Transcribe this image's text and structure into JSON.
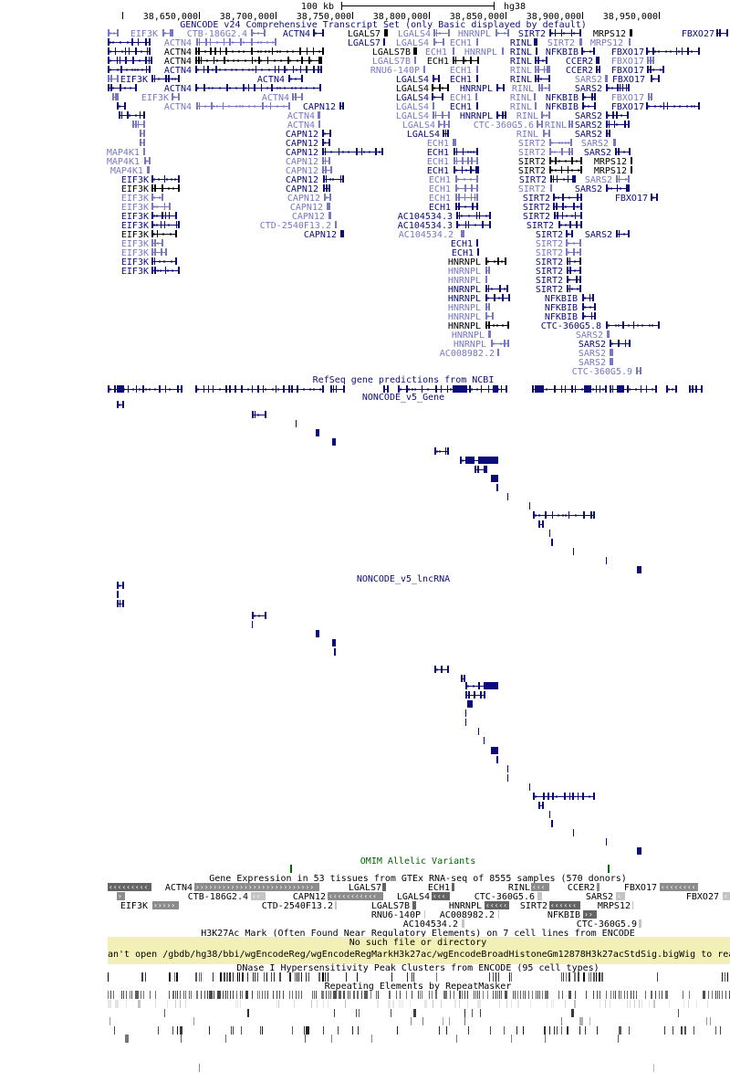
{
  "ruler": {
    "scale_label": "100 kb",
    "assembly": "hg38",
    "positions": [
      "38,650,000",
      "38,700,000",
      "38,750,000",
      "38,800,000",
      "38,850,000",
      "38,900,000",
      "38,950,000"
    ]
  },
  "colors": {
    "dark": "#0c0c78",
    "black": "#000000",
    "light": "#7878c0",
    "omim": "#006400",
    "gtex_dark": "#646464",
    "gtex_mid": "#8c8c8c",
    "gtex_light": "#c4c4c4",
    "warning_bg": "#f2f0b6",
    "repeat": "#000000"
  },
  "gencode": {
    "title": "GENCODE v24 Comprehensive Transcript Set (only Basic displayed by default)",
    "rows": [
      [
        [
          "EIF3K",
          "light"
        ],
        [
          "CTB-186G2.4",
          "light"
        ],
        [
          "ACTN4",
          "dark"
        ],
        [
          "LGALS7",
          "black"
        ],
        [
          "LGALS4",
          "light"
        ],
        [
          "HNRNPL",
          "light"
        ],
        [
          "SIRT2",
          "dark"
        ],
        [
          "MRPS12",
          "black"
        ],
        [
          "FBXO27",
          "dark"
        ]
      ],
      [
        [
          "ACTN4",
          "light"
        ],
        [
          "LGALS7",
          "dark"
        ],
        [
          "LGALS4",
          "light"
        ],
        [
          "ECH1",
          "light"
        ],
        [
          "RINL",
          "dark"
        ],
        [
          "SIRT2",
          "light"
        ],
        [
          "MRPS12",
          "light"
        ]
      ],
      [
        [
          "ACTN4",
          "black"
        ],
        [
          "LGALS7B",
          "black"
        ],
        [
          "ECH1",
          "light"
        ],
        [
          "HNRNPL",
          "light"
        ],
        [
          "RINL",
          "dark"
        ],
        [
          "NFKBIB",
          "dark"
        ],
        [
          "FBXO17",
          "dark"
        ]
      ],
      [
        [
          "ACTN4",
          "black"
        ],
        [
          "LGALS7B",
          "light"
        ],
        [
          "ECH1",
          "black"
        ],
        [
          "RINL",
          "dark"
        ],
        [
          "CCER2",
          "dark"
        ],
        [
          "FBXO17",
          "light"
        ]
      ],
      [
        [
          "ACTN4",
          "dark"
        ],
        [
          "RNU6-140P",
          "light"
        ],
        [
          "ECH1",
          "light"
        ],
        [
          "RINL",
          "light"
        ],
        [
          "CCER2",
          "dark"
        ],
        [
          "FBXO17",
          "dark"
        ]
      ],
      [
        [
          "EIF3K",
          "dark"
        ],
        [
          "ACTN4",
          "dark"
        ],
        [
          "LGALS4",
          "dark"
        ],
        [
          "ECH1",
          "dark"
        ],
        [
          "RINL",
          "dark"
        ],
        [
          "SARS2",
          "light"
        ],
        [
          "FBXO17",
          "dark"
        ]
      ],
      [
        [
          "ACTN4",
          "dark"
        ],
        [
          "LGALS4",
          "black"
        ],
        [
          "HNRNPL",
          "dark"
        ],
        [
          "RINL",
          "light"
        ],
        [
          "SARS2",
          "dark"
        ]
      ],
      [
        [
          "EIF3K",
          "light"
        ],
        [
          "ACTN4",
          "light"
        ],
        [
          "LGALS4",
          "dark"
        ],
        [
          "ECH1",
          "light"
        ],
        [
          "RINL",
          "light"
        ],
        [
          "NFKBIB",
          "dark"
        ],
        [
          "FBXO17",
          "light"
        ]
      ],
      [
        [
          "ACTN4",
          "light"
        ],
        [
          "CAPN12",
          "dark"
        ],
        [
          "LGALS4",
          "light"
        ],
        [
          "ECH1",
          "dark"
        ],
        [
          "RINL",
          "light"
        ],
        [
          "NFKBIB",
          "dark"
        ],
        [
          "FBXO17",
          "dark"
        ]
      ],
      [
        [
          "ACTN4",
          "light"
        ],
        [
          "LGALS4",
          "light"
        ],
        [
          "HNRNPL",
          "dark"
        ],
        [
          "RINL",
          "light"
        ],
        [
          "SARS2",
          "dark"
        ]
      ],
      [
        [
          "ACTN4",
          "light"
        ],
        [
          "LGALS4",
          "light"
        ],
        [
          "CTC-360G5.6",
          "light"
        ],
        [
          "RINL",
          "light"
        ],
        [
          "SARS2",
          "dark"
        ]
      ],
      [
        [
          "CAPN12",
          "dark"
        ],
        [
          "LGALS4",
          "dark"
        ],
        [
          "RINL",
          "light"
        ],
        [
          "SARS2",
          "dark"
        ]
      ],
      [
        [
          "CAPN12",
          "dark"
        ],
        [
          "ECH1",
          "light"
        ],
        [
          "SIRT2",
          "light"
        ],
        [
          "SARS2",
          "light"
        ]
      ],
      [
        [
          "MAP4K1",
          "light"
        ],
        [
          "CAPN12",
          "dark"
        ],
        [
          "ECH1",
          "dark"
        ],
        [
          "SIRT2",
          "light"
        ],
        [
          "SARS2",
          "dark"
        ]
      ],
      [
        [
          "MAP4K1",
          "light"
        ],
        [
          "CAPN12",
          "light"
        ],
        [
          "ECH1",
          "light"
        ],
        [
          "SIRT2",
          "black"
        ],
        [
          "MRPS12",
          "black"
        ]
      ],
      [
        [
          "MAP4K1",
          "light"
        ],
        [
          "CAPN12",
          "light"
        ],
        [
          "ECH1",
          "dark"
        ],
        [
          "SIRT2",
          "black"
        ],
        [
          "MRPS12",
          "black"
        ]
      ],
      [
        [
          "EIF3K",
          "dark"
        ],
        [
          "CAPN12",
          "dark"
        ],
        [
          "ECH1",
          "light"
        ],
        [
          "SIRT2",
          "dark"
        ],
        [
          "SARS2",
          "light"
        ]
      ],
      [
        [
          "EIF3K",
          "black"
        ],
        [
          "CAPN12",
          "dark"
        ],
        [
          "ECH1",
          "light"
        ],
        [
          "SIRT2",
          "light"
        ],
        [
          "SARS2",
          "dark"
        ]
      ],
      [
        [
          "EIF3K",
          "light"
        ],
        [
          "CAPN12",
          "light"
        ],
        [
          "ECH1",
          "light"
        ],
        [
          "SIRT2",
          "dark"
        ],
        [
          "FBXO17",
          "dark"
        ]
      ],
      [
        [
          "EIF3K",
          "light"
        ],
        [
          "CAPN12",
          "light"
        ],
        [
          "ECH1",
          "dark"
        ],
        [
          "SIRT2",
          "dark"
        ]
      ],
      [
        [
          "EIF3K",
          "dark"
        ],
        [
          "CAPN12",
          "light"
        ],
        [
          "AC104534.3",
          "dark"
        ],
        [
          "SIRT2",
          "dark"
        ]
      ],
      [
        [
          "EIF3K",
          "dark"
        ],
        [
          "CTD-2540F13.2",
          "light"
        ],
        [
          "AC104534.3",
          "dark"
        ],
        [
          "SIRT2",
          "dark"
        ]
      ],
      [
        [
          "EIF3K",
          "black"
        ],
        [
          "CAPN12",
          "dark"
        ],
        [
          "AC104534.2",
          "light"
        ],
        [
          "SIRT2",
          "dark"
        ],
        [
          "SARS2",
          "dark"
        ]
      ],
      [
        [
          "EIF3K",
          "light"
        ],
        [
          "ECH1",
          "dark"
        ],
        [
          "SIRT2",
          "light"
        ]
      ],
      [
        [
          "EIF3K",
          "light"
        ],
        [
          "ECH1",
          "dark"
        ],
        [
          "SIRT2",
          "light"
        ]
      ],
      [
        [
          "EIF3K",
          "dark"
        ],
        [
          "HNRNPL",
          "black"
        ],
        [
          "SIRT2",
          "dark"
        ]
      ],
      [
        [
          "EIF3K",
          "dark"
        ],
        [
          "HNRNPL",
          "light"
        ],
        [
          "SIRT2",
          "dark"
        ]
      ],
      [
        [
          "HNRNPL",
          "light"
        ],
        [
          "SIRT2",
          "dark"
        ]
      ],
      [
        [
          "HNRNPL",
          "dark"
        ],
        [
          "SIRT2",
          "dark"
        ]
      ],
      [
        [
          "HNRNPL",
          "dark"
        ],
        [
          "NFKBIB",
          "dark"
        ]
      ],
      [
        [
          "HNRNPL",
          "light"
        ],
        [
          "NFKBIB",
          "dark"
        ]
      ],
      [
        [
          "HNRNPL",
          "light"
        ],
        [
          "NFKBIB",
          "dark"
        ]
      ],
      [
        [
          "HNRNPL",
          "black"
        ],
        [
          "CTC-360G5.8",
          "dark"
        ]
      ],
      [
        [
          "HNRNPL",
          "light"
        ],
        [
          "SARS2",
          "light"
        ]
      ],
      [
        [
          "HNRNPL",
          "light"
        ],
        [
          "SARS2",
          "dark"
        ]
      ],
      [
        [
          "AC008982.2",
          "light"
        ],
        [
          "SARS2",
          "light"
        ]
      ],
      [
        [
          "SARS2",
          "light"
        ]
      ],
      [
        [
          "CTC-360G5.9",
          "light"
        ]
      ]
    ]
  },
  "refseq": {
    "title": "RefSeq gene predictions from NCBI"
  },
  "noncode_gene": {
    "title": "NONCODE_v5_Gene"
  },
  "noncode_lncrna": {
    "title": "NONCODE_v5_lncRNA"
  },
  "omim": {
    "title": "OMIM Allelic Variants"
  },
  "gtex": {
    "title": "Gene Expression in 53 tissues from GTEx RNA-seq of 8555 samples (570 donors)",
    "rows": [
      [
        [
          "ACTN4",
          "mid",
          ">"
        ],
        [
          "LGALS7",
          "dark",
          "<"
        ],
        [
          "ECH1",
          "dark",
          ""
        ],
        [
          "RINL",
          "mid",
          "<"
        ],
        [
          "CCER2",
          "mid",
          "<"
        ],
        [
          "FBXO17",
          "mid",
          "<"
        ]
      ],
      [
        [
          "CTB-186G2.4",
          "light",
          "<"
        ],
        [
          "CAPN12",
          "mid",
          "<"
        ],
        [
          "LGALS4",
          "dark",
          "<"
        ],
        [
          "CTC-360G5.6",
          "light",
          ">"
        ],
        [
          "SARS2",
          "light",
          "<"
        ],
        [
          "FBXO27",
          "light",
          "<"
        ]
      ],
      [
        [
          "EIF3K",
          "mid",
          ">"
        ],
        [
          "CTD-2540F13.2",
          "light",
          ""
        ],
        [
          "LGALS7B",
          "dark",
          ""
        ],
        [
          "HNRNPL",
          "dark",
          "<"
        ],
        [
          "SIRT2",
          "dark",
          "<"
        ],
        [
          "MRPS12",
          "light",
          ""
        ]
      ],
      [
        [
          "RNU6-140P",
          "light",
          ""
        ],
        [
          "AC008982.2",
          "light",
          ""
        ],
        [
          "NFKBIB",
          "dark",
          ">"
        ]
      ],
      [
        [
          "AC104534.2",
          "light",
          ">"
        ],
        [
          "CTC-360G5.9",
          "light",
          "<"
        ]
      ]
    ]
  },
  "h3k27ac": {
    "title": "H3K27Ac Mark (Often Found Near Regulatory Elements) on 7 cell lines from ENCODE",
    "error": "No such file or directory",
    "message": "an't open /gbdb/hg38/bbi/wgEncodeReg/wgEncodeRegMarkH3k27ac/wgEncodeBroadHistoneGm12878H3k27acStdSig.bigWig to rea"
  },
  "dnase": {
    "title": "DNase I Hypersensitivity Peak Clusters from ENCODE (95 cell types)"
  },
  "repeats": {
    "title": "Repeating Elements by RepeatMasker"
  }
}
